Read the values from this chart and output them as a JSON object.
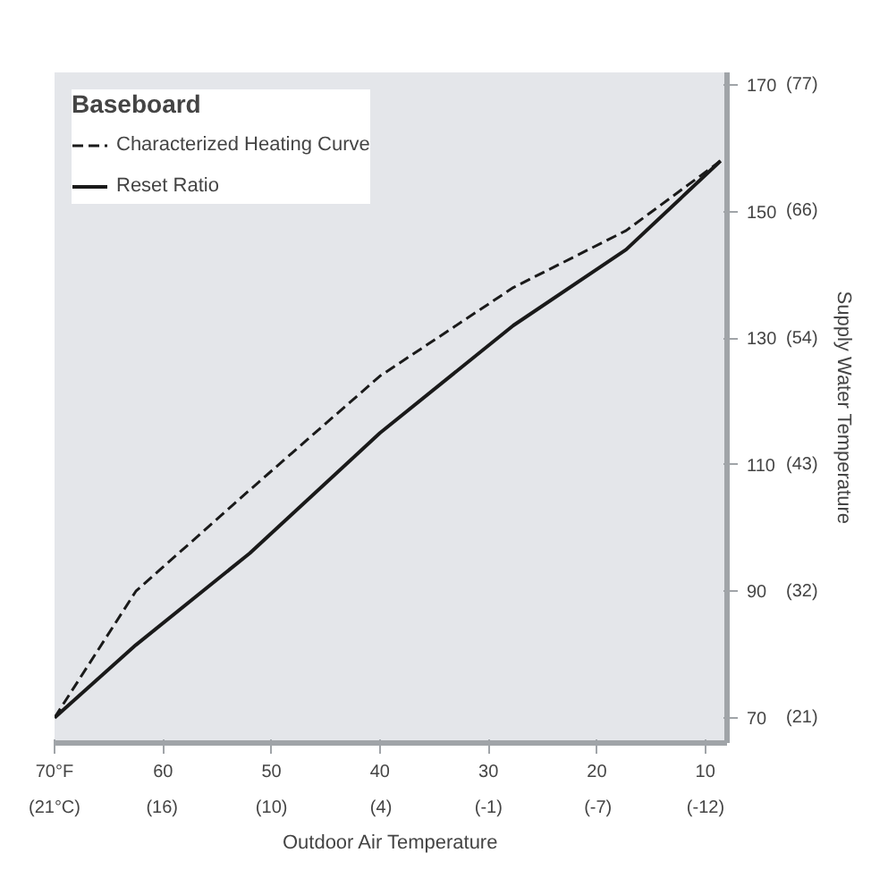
{
  "chart_data": {
    "type": "line",
    "legend_title": "Baseboard",
    "xlabel": "Outdoor Air Temperature",
    "y2label": "Supply Water Temperature",
    "x": [
      70,
      62.5,
      52,
      40,
      27.7,
      17.3,
      8.6
    ],
    "series": [
      {
        "name": "Characterized Heating Curve",
        "color": "#1a1a1a",
        "line_style": "dashed",
        "values": [
          70,
          90,
          106,
          124,
          138,
          147,
          158
        ]
      },
      {
        "name": "Reset Ratio",
        "color": "#1a1a1a",
        "line_style": "solid",
        "values": [
          70,
          81.5,
          96,
          115,
          132,
          144,
          158
        ]
      }
    ],
    "xlim": [
      70,
      8
    ],
    "ylim": [
      66,
      172
    ],
    "xticks": [
      {
        "value": 70,
        "label": "70°F"
      },
      60,
      50,
      40,
      30,
      20,
      10
    ],
    "x2lim": [
      21.1,
      -13.3
    ],
    "x2ticks": [
      {
        "value": 21.1,
        "label": "(21°C)"
      },
      {
        "value": 15.6,
        "label": "(16)"
      },
      {
        "value": 10,
        "label": "(10)"
      },
      {
        "value": 4.4,
        "label": "(4)"
      },
      {
        "value": -1.1,
        "label": "(-1)"
      },
      {
        "value": -6.7,
        "label": "(-7)"
      },
      {
        "value": -12.2,
        "label": "(-12)"
      }
    ],
    "yticks": [
      70,
      90,
      110,
      130,
      150,
      170
    ],
    "y2lim": [
      18.9,
      77.8
    ],
    "y2ticks": [
      {
        "value": 21.1,
        "label": "(21)"
      },
      {
        "value": 32.2,
        "label": "(32)"
      },
      {
        "value": 43.3,
        "label": "(43)"
      },
      {
        "value": 54.4,
        "label": "(54)"
      },
      {
        "value": 65.6,
        "label": "(66)"
      },
      {
        "value": 76.7,
        "label": "(77)"
      }
    ],
    "legend": "top left"
  }
}
